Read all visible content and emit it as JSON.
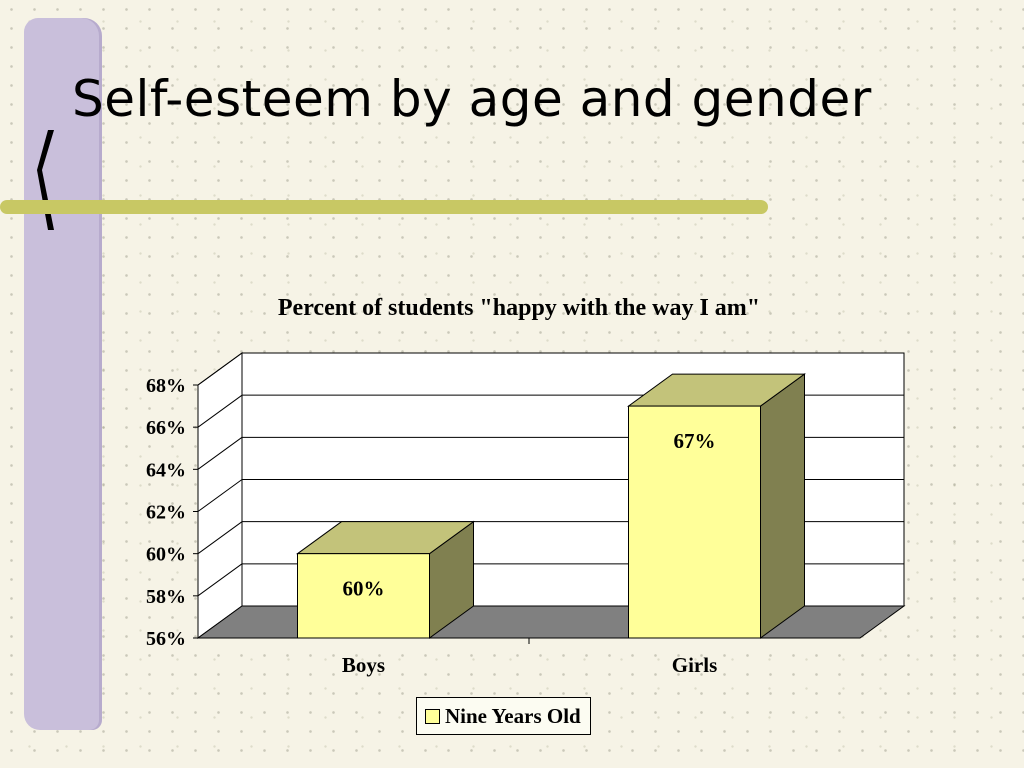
{
  "slide": {
    "title": "Self-esteem by age and gender"
  },
  "colors": {
    "strip": "#c9bfdb",
    "accent_line": "#c8c864",
    "bar_front": "#ffff99",
    "bar_top": "#c3c37a",
    "bar_side": "#808050",
    "floor": "#808080"
  },
  "chart_data": {
    "type": "bar",
    "title": "Percent of students \"happy with the way I am\"",
    "categories": [
      "Boys",
      "Girls"
    ],
    "series": [
      {
        "name": "Nine Years Old",
        "values": [
          60,
          67
        ],
        "labels": [
          "60%",
          "67%"
        ]
      }
    ],
    "ylim": [
      56,
      68
    ],
    "yticks": [
      56,
      58,
      60,
      62,
      64,
      66,
      68
    ],
    "ytick_labels": [
      "56%",
      "58%",
      "60%",
      "62%",
      "64%",
      "66%",
      "68%"
    ],
    "xlabel": "",
    "ylabel": "",
    "grid": true,
    "legend_position": "bottom"
  }
}
